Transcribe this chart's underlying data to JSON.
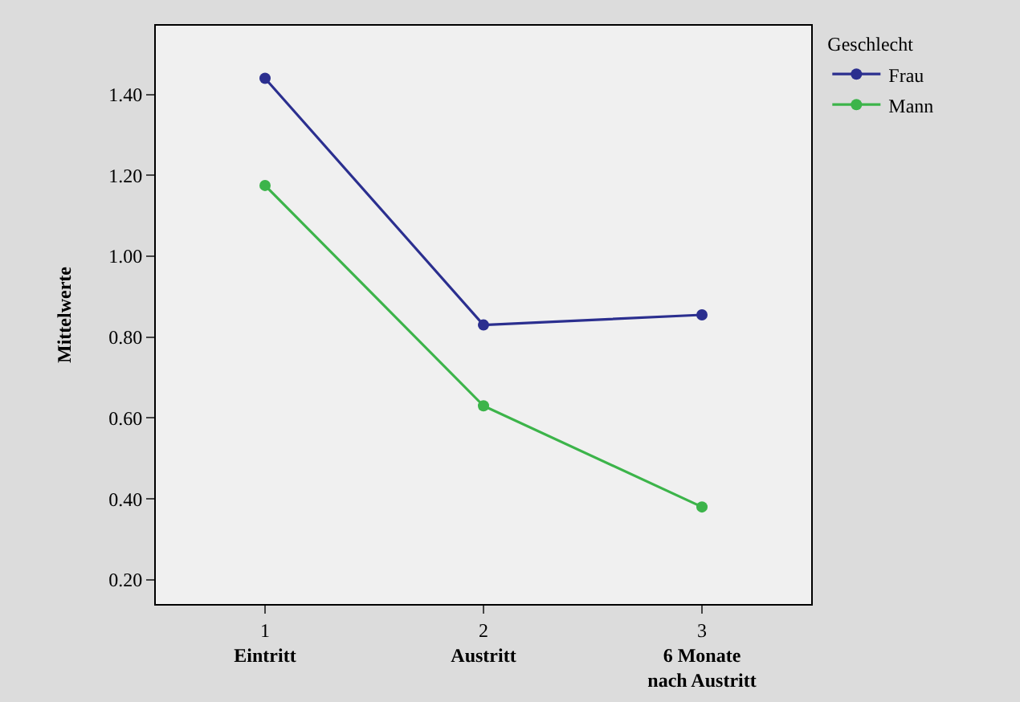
{
  "chart_data": {
    "type": "line",
    "ylabel": "Mittelwerte",
    "legend_title": "Geschlecht",
    "legend": "top right",
    "marker": "circle",
    "grid": false,
    "categories": [
      "1\nEintritt",
      "2\nAustritt",
      "3\n6 Monate\nnach Austritt"
    ],
    "series": [
      {
        "name": "Frau",
        "color": "#2b2f8f",
        "values": [
          1.44,
          0.83,
          0.855
        ]
      },
      {
        "name": "Mann",
        "color": "#3cb44a",
        "values": [
          1.175,
          0.63,
          0.38
        ]
      }
    ],
    "ylim": [
      0.14,
      1.57
    ],
    "yticks": [
      {
        "value": 0.2,
        "label": "0.20"
      },
      {
        "value": 0.4,
        "label": "0.40"
      },
      {
        "value": 0.6,
        "label": "0.60"
      },
      {
        "value": 0.8,
        "label": "0.80"
      },
      {
        "value": 1.0,
        "label": "1.00"
      },
      {
        "value": 1.2,
        "label": "1.20"
      },
      {
        "value": 1.4,
        "label": "1.40"
      }
    ]
  }
}
